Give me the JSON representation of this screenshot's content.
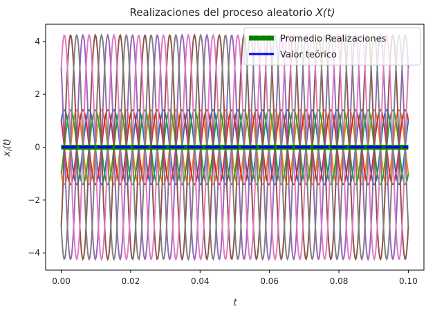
{
  "chart_data": {
    "type": "line",
    "title": "Realizaciones del proceso aleatorio X(t)",
    "xlabel": "t",
    "ylabel": "x_i(t)",
    "xlim": [
      -0.0045,
      0.1045
    ],
    "ylim": [
      -4.65,
      4.65
    ],
    "x_ticks": [
      0.0,
      0.02,
      0.04,
      0.06,
      0.08,
      0.1
    ],
    "x_tick_labels": [
      "0.00",
      "0.02",
      "0.04",
      "0.06",
      "0.08",
      "0.10"
    ],
    "y_ticks": [
      -4,
      -2,
      0,
      2,
      4
    ],
    "y_tick_labels": [
      "−4",
      "−2",
      "0",
      "2",
      "4"
    ],
    "grid": false,
    "legend_position": "top-right",
    "t_start": 0.0,
    "t_end": 0.1,
    "frequency_hz": 140,
    "series": [
      {
        "amplitude": 1.41,
        "phase_deg": -45,
        "color": "#1f77b4"
      },
      {
        "amplitude": 1.41,
        "phase_deg": 135,
        "color": "#ff7f0e"
      },
      {
        "amplitude": 1.41,
        "phase_deg": -135,
        "color": "#2ca02c"
      },
      {
        "amplitude": 1.41,
        "phase_deg": 45,
        "color": "#d62728"
      },
      {
        "amplitude": 4.24,
        "phase_deg": 45,
        "color": "#9467bd"
      },
      {
        "amplitude": 4.24,
        "phase_deg": -135,
        "color": "#8c564b"
      },
      {
        "amplitude": 4.24,
        "phase_deg": -45,
        "color": "#e377c2"
      },
      {
        "amplitude": 4.24,
        "phase_deg": 135,
        "color": "#7f7f7f"
      },
      {
        "name": "Promedio Realizaciones",
        "constant": 0,
        "color": "#008000"
      },
      {
        "name": "Valor teórico",
        "constant": 0,
        "color": "#0000ff",
        "dashed": true
      }
    ],
    "legend": [
      {
        "label": "Promedio Realizaciones",
        "color": "#008000"
      },
      {
        "label": "Valor teórico",
        "color": "#0000ff"
      }
    ]
  }
}
